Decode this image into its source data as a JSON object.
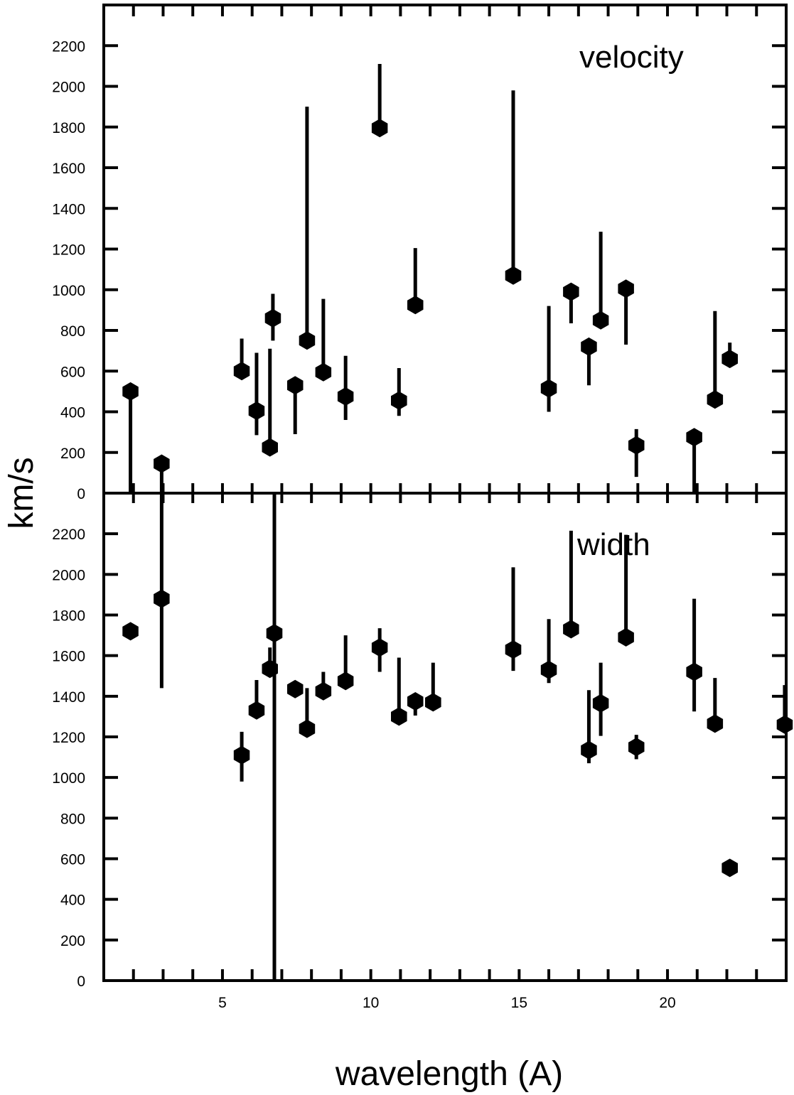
{
  "chart_data": {
    "type": "scatter",
    "xlabel": "wavelength (A)",
    "ylabel": "km/s",
    "xlim": [
      1.0,
      24.0
    ],
    "xticks": [
      5,
      10,
      15,
      20
    ],
    "grid": false,
    "legend": "none",
    "panels": [
      {
        "label": "velocity",
        "ylim": [
          0,
          2400
        ],
        "yticks": [
          0,
          200,
          400,
          600,
          800,
          1000,
          1200,
          1400,
          1600,
          1800,
          2000,
          2200
        ],
        "points": [
          {
            "x": 1.9,
            "y": 500,
            "lo": 0,
            "hi": 500
          },
          {
            "x": 2.95,
            "y": 145,
            "lo": 0,
            "hi": 145
          },
          {
            "x": 5.65,
            "y": 600,
            "lo": 600,
            "hi": 760
          },
          {
            "x": 6.15,
            "y": 405,
            "lo": 285,
            "hi": 690
          },
          {
            "x": 6.6,
            "y": 225,
            "lo": 225,
            "hi": 710
          },
          {
            "x": 6.7,
            "y": 860,
            "lo": 750,
            "hi": 980
          },
          {
            "x": 7.45,
            "y": 530,
            "lo": 290,
            "hi": 530
          },
          {
            "x": 7.85,
            "y": 750,
            "lo": 750,
            "hi": 1900
          },
          {
            "x": 8.4,
            "y": 595,
            "lo": 595,
            "hi": 955
          },
          {
            "x": 9.15,
            "y": 475,
            "lo": 360,
            "hi": 675
          },
          {
            "x": 10.3,
            "y": 1795,
            "lo": 1795,
            "hi": 2110
          },
          {
            "x": 10.95,
            "y": 455,
            "lo": 380,
            "hi": 615
          },
          {
            "x": 11.5,
            "y": 925,
            "lo": 925,
            "hi": 1205
          },
          {
            "x": 14.8,
            "y": 1070,
            "lo": 1070,
            "hi": 1980
          },
          {
            "x": 16.0,
            "y": 515,
            "lo": 400,
            "hi": 920
          },
          {
            "x": 16.75,
            "y": 990,
            "lo": 835,
            "hi": 990
          },
          {
            "x": 17.35,
            "y": 720,
            "lo": 530,
            "hi": 720
          },
          {
            "x": 17.75,
            "y": 850,
            "lo": 850,
            "hi": 1285
          },
          {
            "x": 18.6,
            "y": 1005,
            "lo": 730,
            "hi": 1005
          },
          {
            "x": 18.95,
            "y": 235,
            "lo": 80,
            "hi": 315
          },
          {
            "x": 20.9,
            "y": 275,
            "lo": 0,
            "hi": 275
          },
          {
            "x": 21.6,
            "y": 460,
            "lo": 460,
            "hi": 895
          },
          {
            "x": 22.1,
            "y": 660,
            "lo": 660,
            "hi": 740
          }
        ]
      },
      {
        "label": "width",
        "ylim": [
          0,
          2400
        ],
        "yticks": [
          0,
          200,
          400,
          600,
          800,
          1000,
          1200,
          1400,
          1600,
          1800,
          2000,
          2200
        ],
        "points": [
          {
            "x": 1.9,
            "y": 1720,
            "lo": 1720,
            "hi": 1720
          },
          {
            "x": 2.95,
            "y": 1880,
            "lo": 1440,
            "hi": 2400
          },
          {
            "x": 5.65,
            "y": 1110,
            "lo": 980,
            "hi": 1225
          },
          {
            "x": 6.15,
            "y": 1330,
            "lo": 1330,
            "hi": 1480
          },
          {
            "x": 6.6,
            "y": 1535,
            "lo": 1535,
            "hi": 1640
          },
          {
            "x": 6.75,
            "y": 1710,
            "lo": 0,
            "hi": 2400
          },
          {
            "x": 7.45,
            "y": 1435,
            "lo": 1435,
            "hi": 1435
          },
          {
            "x": 7.85,
            "y": 1240,
            "lo": 1240,
            "hi": 1440
          },
          {
            "x": 8.4,
            "y": 1425,
            "lo": 1425,
            "hi": 1520
          },
          {
            "x": 9.15,
            "y": 1475,
            "lo": 1475,
            "hi": 1700
          },
          {
            "x": 10.3,
            "y": 1640,
            "lo": 1520,
            "hi": 1735
          },
          {
            "x": 10.95,
            "y": 1300,
            "lo": 1300,
            "hi": 1590
          },
          {
            "x": 11.5,
            "y": 1375,
            "lo": 1305,
            "hi": 1375
          },
          {
            "x": 12.1,
            "y": 1370,
            "lo": 1370,
            "hi": 1565
          },
          {
            "x": 14.8,
            "y": 1630,
            "lo": 1525,
            "hi": 2035
          },
          {
            "x": 16.0,
            "y": 1530,
            "lo": 1465,
            "hi": 1780
          },
          {
            "x": 16.75,
            "y": 1730,
            "lo": 1730,
            "hi": 2215
          },
          {
            "x": 17.35,
            "y": 1135,
            "lo": 1070,
            "hi": 1430
          },
          {
            "x": 17.75,
            "y": 1365,
            "lo": 1205,
            "hi": 1565
          },
          {
            "x": 18.6,
            "y": 1690,
            "lo": 1690,
            "hi": 2195
          },
          {
            "x": 18.95,
            "y": 1150,
            "lo": 1090,
            "hi": 1210
          },
          {
            "x": 20.9,
            "y": 1520,
            "lo": 1325,
            "hi": 1880
          },
          {
            "x": 21.6,
            "y": 1265,
            "lo": 1265,
            "hi": 1490
          },
          {
            "x": 22.1,
            "y": 555,
            "lo": 555,
            "hi": 555
          },
          {
            "x": 23.95,
            "y": 1260,
            "lo": 1260,
            "hi": 1455
          }
        ]
      }
    ]
  }
}
